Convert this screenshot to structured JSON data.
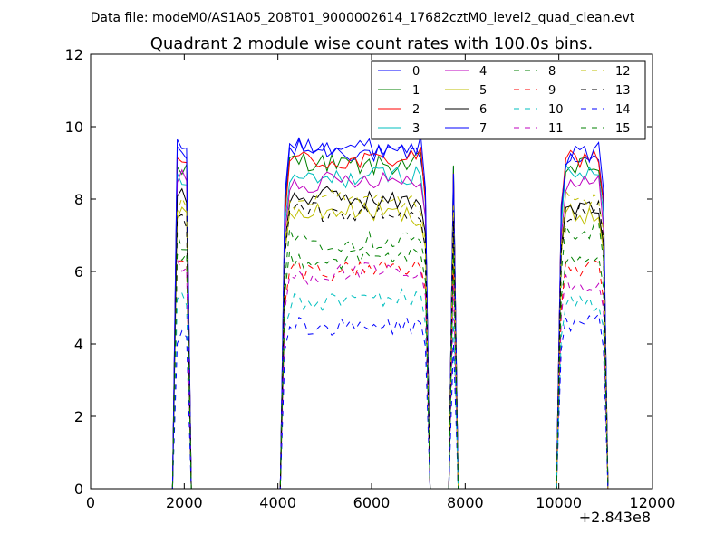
{
  "chart_data": {
    "type": "line",
    "suptitle": "Data file: modeM0/AS1A05_208T01_9000002614_17682cztM0_level2_quad_clean.evt",
    "title": "Quadrant 2 module wise count rates with 100.0s bins.",
    "xlabel": "",
    "ylabel": "",
    "xlim": [
      0,
      12000
    ],
    "ylim": [
      0,
      12
    ],
    "x_offset_label": "+2.843e8",
    "x_ticks": [
      0,
      2000,
      4000,
      6000,
      8000,
      10000,
      12000
    ],
    "x_tick_labels": [
      "0",
      "2000",
      "4000",
      "6000",
      "8000",
      "10000",
      "12000"
    ],
    "y_ticks": [
      0,
      2,
      4,
      6,
      8,
      10,
      12
    ],
    "y_tick_labels": [
      "0",
      "2",
      "4",
      "6",
      "8",
      "10",
      "12"
    ],
    "legend_position": "top-right",
    "legend_columns": 4,
    "bin_width": 100,
    "segments": [
      {
        "start": 1850,
        "end": 2050
      },
      {
        "start": 4150,
        "end": 7150
      },
      {
        "start": 7750,
        "end": 7750
      },
      {
        "start": 10050,
        "end": 10950
      }
    ],
    "series": [
      {
        "name": "0",
        "color": "#0000ff",
        "dash": "solid",
        "level": 9.3,
        "segment_levels": [
          9.4,
          9.3,
          8.9,
          9.2
        ]
      },
      {
        "name": "1",
        "color": "#008000",
        "dash": "solid",
        "level": 9.0,
        "segment_levels": [
          8.8,
          9.0,
          8.6,
          8.9
        ]
      },
      {
        "name": "2",
        "color": "#ff0000",
        "dash": "solid",
        "level": 9.1,
        "segment_levels": [
          9.0,
          9.1,
          8.7,
          9.1
        ]
      },
      {
        "name": "3",
        "color": "#00bfbf",
        "dash": "solid",
        "level": 8.6,
        "segment_levels": [
          8.5,
          8.6,
          8.3,
          8.6
        ]
      },
      {
        "name": "4",
        "color": "#bf00bf",
        "dash": "solid",
        "level": 8.5,
        "segment_levels": [
          8.6,
          8.5,
          8.2,
          8.4
        ]
      },
      {
        "name": "5",
        "color": "#bfbf00",
        "dash": "solid",
        "level": 7.6,
        "segment_levels": [
          7.6,
          7.6,
          7.3,
          7.6
        ]
      },
      {
        "name": "6",
        "color": "#000000",
        "dash": "solid",
        "level": 8.0,
        "segment_levels": [
          8.1,
          8.0,
          7.8,
          7.8
        ]
      },
      {
        "name": "7",
        "color": "#0000ff",
        "dash": "solid",
        "level": 9.6,
        "segment_levels": [
          9.3,
          9.5,
          8.9,
          9.3
        ]
      },
      {
        "name": "8",
        "color": "#008000",
        "dash": "dashed",
        "level": 6.9,
        "segment_levels": [
          6.9,
          6.9,
          6.7,
          7.1
        ]
      },
      {
        "name": "9",
        "color": "#ff0000",
        "dash": "dashed",
        "level": 6.1,
        "segment_levels": [
          6.2,
          6.1,
          5.9,
          6.0
        ]
      },
      {
        "name": "10",
        "color": "#00bfbf",
        "dash": "dashed",
        "level": 5.2,
        "segment_levels": [
          5.2,
          5.2,
          5.0,
          5.1
        ]
      },
      {
        "name": "11",
        "color": "#bf00bf",
        "dash": "dashed",
        "level": 5.9,
        "segment_levels": [
          6.0,
          5.9,
          5.8,
          5.7
        ]
      },
      {
        "name": "12",
        "color": "#bfbf00",
        "dash": "dashed",
        "level": 7.9,
        "segment_levels": [
          7.8,
          7.9,
          7.6,
          8.0
        ]
      },
      {
        "name": "13",
        "color": "#000000",
        "dash": "dashed",
        "level": 7.6,
        "segment_levels": [
          7.5,
          7.6,
          7.4,
          7.7
        ]
      },
      {
        "name": "14",
        "color": "#0000ff",
        "dash": "dashed",
        "level": 4.5,
        "segment_levels": [
          4.3,
          4.5,
          4.2,
          4.5
        ]
      },
      {
        "name": "15",
        "color": "#008000",
        "dash": "dashed",
        "level": 6.4,
        "segment_levels": [
          6.4,
          6.4,
          6.2,
          6.4
        ]
      }
    ]
  }
}
